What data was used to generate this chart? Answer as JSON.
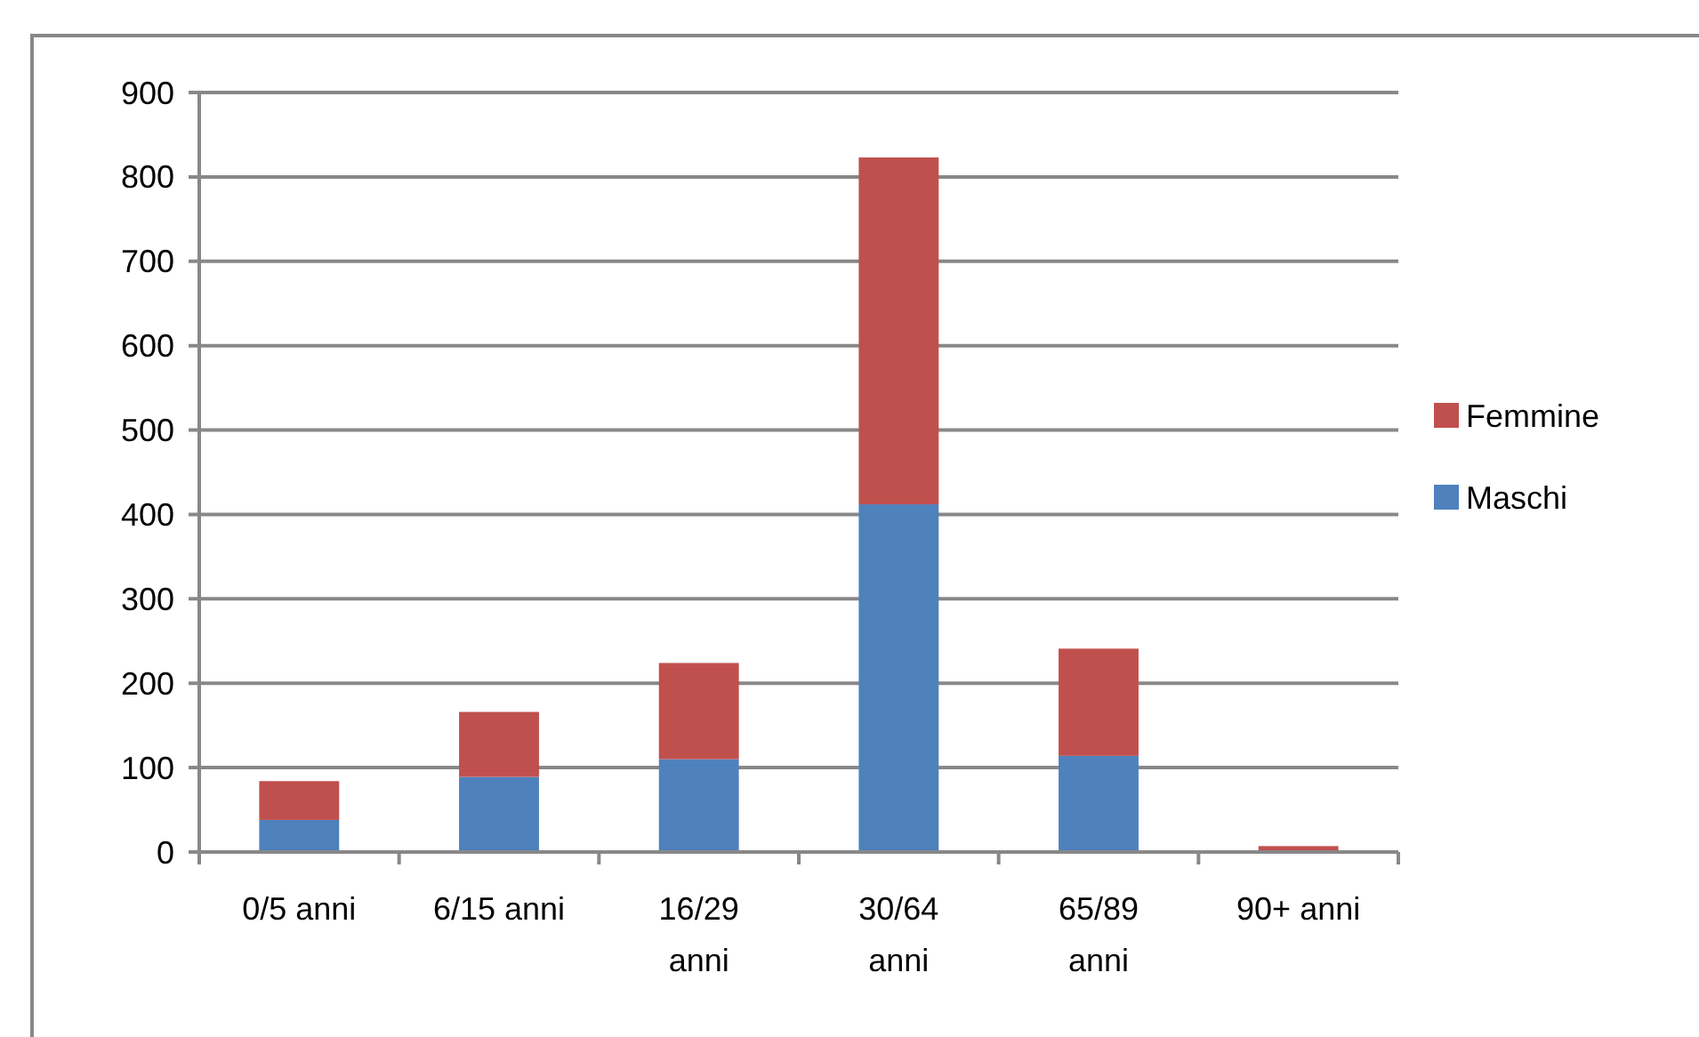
{
  "chart_data": {
    "type": "bar",
    "stacked": true,
    "categories": [
      "0/5 anni",
      "6/15 anni",
      "16/29 anni",
      "30/64 anni",
      "65/89 anni",
      "90+ anni"
    ],
    "series": [
      {
        "name": "Maschi",
        "color": "#4f81bd",
        "values": [
          38,
          89,
          110,
          412,
          114,
          0
        ]
      },
      {
        "name": "Femmine",
        "color": "#c0504d",
        "values": [
          46,
          77,
          114,
          411,
          127,
          7
        ]
      }
    ],
    "ylim": [
      0,
      900
    ],
    "yticks": [
      0,
      100,
      200,
      300,
      400,
      500,
      600,
      700,
      800,
      900
    ],
    "grid": "y",
    "legend": "right"
  }
}
